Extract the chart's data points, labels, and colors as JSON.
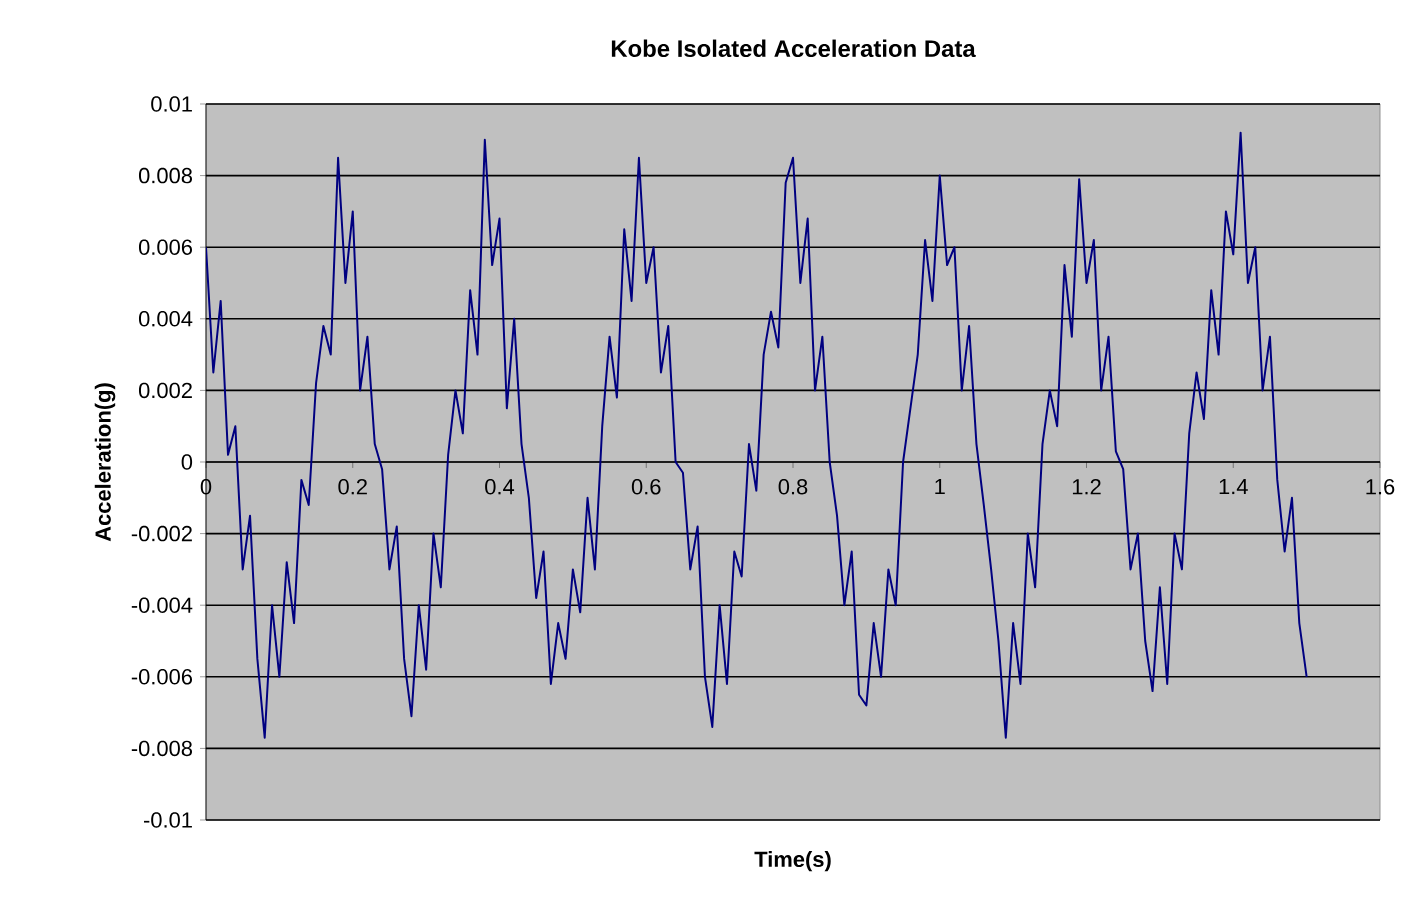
{
  "chart_data": {
    "type": "line",
    "title": "Kobe Isolated Acceleration Data",
    "xlabel": "Time(s)",
    "ylabel": "Acceleration(g)",
    "xlim": [
      0,
      1.6
    ],
    "xticks": [
      0,
      0.2,
      0.4,
      0.6,
      0.8,
      1,
      1.2,
      1.4,
      1.6
    ],
    "ylim": [
      -0.01,
      0.01
    ],
    "yticks": [
      -0.01,
      -0.008,
      -0.006,
      -0.004,
      -0.002,
      0,
      0.002,
      0.004,
      0.006,
      0.008,
      0.01
    ],
    "grid": "y",
    "x": [
      0.0,
      0.01,
      0.02,
      0.03,
      0.04,
      0.05,
      0.06,
      0.07,
      0.08,
      0.09,
      0.1,
      0.11,
      0.12,
      0.13,
      0.14,
      0.15,
      0.16,
      0.17,
      0.18,
      0.19,
      0.2,
      0.21,
      0.22,
      0.23,
      0.24,
      0.25,
      0.26,
      0.27,
      0.28,
      0.29,
      0.3,
      0.31,
      0.32,
      0.33,
      0.34,
      0.35,
      0.36,
      0.37,
      0.38,
      0.39,
      0.4,
      0.41,
      0.42,
      0.43,
      0.44,
      0.45,
      0.46,
      0.47,
      0.48,
      0.49,
      0.5,
      0.51,
      0.52,
      0.53,
      0.54,
      0.55,
      0.56,
      0.57,
      0.58,
      0.59,
      0.6,
      0.61,
      0.62,
      0.63,
      0.64,
      0.65,
      0.66,
      0.67,
      0.68,
      0.69,
      0.7,
      0.71,
      0.72,
      0.73,
      0.74,
      0.75,
      0.76,
      0.77,
      0.78,
      0.79,
      0.8,
      0.81,
      0.82,
      0.83,
      0.84,
      0.85,
      0.86,
      0.87,
      0.88,
      0.89,
      0.9,
      0.91,
      0.92,
      0.93,
      0.94,
      0.95,
      0.96,
      0.97,
      0.98,
      0.99,
      1.0,
      1.01,
      1.02,
      1.03,
      1.04,
      1.05,
      1.06,
      1.07,
      1.08,
      1.09,
      1.1,
      1.11,
      1.12,
      1.13,
      1.14,
      1.15,
      1.16,
      1.17,
      1.18,
      1.19,
      1.2,
      1.21,
      1.22,
      1.23,
      1.24,
      1.25,
      1.26,
      1.27,
      1.28,
      1.29,
      1.3,
      1.31,
      1.32,
      1.33,
      1.34,
      1.35,
      1.36,
      1.37,
      1.38,
      1.39,
      1.4,
      1.41,
      1.42,
      1.43,
      1.44,
      1.45,
      1.46,
      1.47,
      1.48,
      1.49,
      1.5
    ],
    "series": [
      {
        "color": "#000080",
        "values": [
          0.006,
          0.0025,
          0.0045,
          0.0002,
          0.001,
          -0.003,
          -0.0015,
          -0.0055,
          -0.0077,
          -0.004,
          -0.006,
          -0.0028,
          -0.0045,
          -0.0005,
          -0.0012,
          0.0022,
          0.0038,
          0.003,
          0.0085,
          0.005,
          0.007,
          0.002,
          0.0035,
          0.0005,
          -0.0002,
          -0.003,
          -0.0018,
          -0.0055,
          -0.0071,
          -0.004,
          -0.0058,
          -0.002,
          -0.0035,
          0.0002,
          0.002,
          0.0008,
          0.0048,
          0.003,
          0.009,
          0.0055,
          0.0068,
          0.0015,
          0.004,
          0.0005,
          -0.001,
          -0.0038,
          -0.0025,
          -0.0062,
          -0.0045,
          -0.0055,
          -0.003,
          -0.0042,
          -0.001,
          -0.003,
          0.001,
          0.0035,
          0.0018,
          0.0065,
          0.0045,
          0.0085,
          0.005,
          0.006,
          0.0025,
          0.0038,
          0.0,
          -0.0003,
          -0.003,
          -0.0018,
          -0.006,
          -0.0074,
          -0.004,
          -0.0062,
          -0.0025,
          -0.0032,
          0.0005,
          -0.0008,
          0.003,
          0.0042,
          0.0032,
          0.0078,
          0.0085,
          0.005,
          0.0068,
          0.002,
          0.0035,
          0.0,
          -0.0015,
          -0.004,
          -0.0025,
          -0.0065,
          -0.0068,
          -0.0045,
          -0.006,
          -0.003,
          -0.004,
          0.0,
          0.0015,
          0.003,
          0.0062,
          0.0045,
          0.008,
          0.0055,
          0.006,
          0.002,
          0.0038,
          0.0005,
          -0.0012,
          -0.003,
          -0.005,
          -0.0077,
          -0.0045,
          -0.0062,
          -0.002,
          -0.0035,
          0.0005,
          0.002,
          0.001,
          0.0055,
          0.0035,
          0.0079,
          0.005,
          0.0062,
          0.002,
          0.0035,
          0.0003,
          -0.0002,
          -0.003,
          -0.002,
          -0.005,
          -0.0064,
          -0.0035,
          -0.0062,
          -0.002,
          -0.003,
          0.0008,
          0.0025,
          0.0012,
          0.0048,
          0.003,
          0.007,
          0.0058,
          0.0092,
          0.005,
          0.006,
          0.002,
          0.0035,
          -0.0005,
          -0.0025,
          -0.001,
          -0.0045,
          -0.006
        ]
      }
    ]
  }
}
